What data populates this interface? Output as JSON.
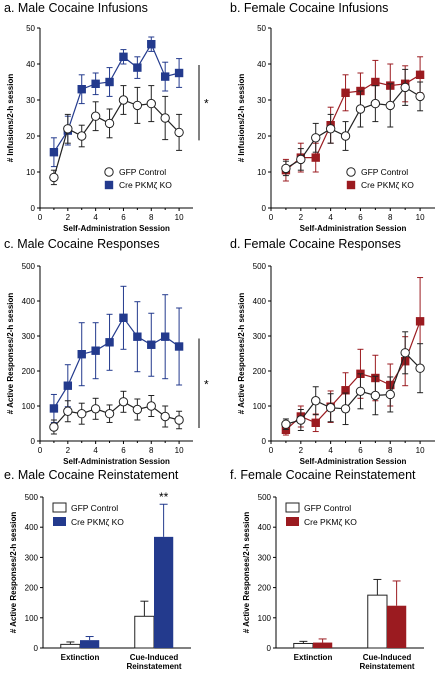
{
  "colors": {
    "blue": "#233a8d",
    "red": "#9b1b20",
    "white": "#ffffff",
    "axis": "#000000",
    "err_black": "#222222"
  },
  "panels": [
    {
      "title": "a. Male Cocaine Infusions",
      "xlabel": "Self-Administration Session",
      "ylabel": "# Infusions/2-h session",
      "significance": "*"
    },
    {
      "title": "b. Female Cocaine Infusions",
      "xlabel": "Self-Administration Session",
      "ylabel": "# Infusions/2-h session",
      "significance": ""
    },
    {
      "title": "c. Male Cocaine Responses",
      "xlabel": "Self-Administration Session",
      "ylabel": "# Active Responses/2-h session",
      "significance": "*"
    },
    {
      "title": "d. Female Cocaine Responses",
      "xlabel": "Self-Administration Session",
      "ylabel": "# Active Responses/2-h session",
      "significance": ""
    },
    {
      "title": "e. Male Cocaine Reinstatement",
      "xlabel": "",
      "ylabel": "# Active Responses/2-h session",
      "significance": "**"
    },
    {
      "title": "f. Female Cocaine Reinstatement",
      "xlabel": "",
      "ylabel": "# Active Responses/2-h session",
      "significance": ""
    }
  ],
  "chart_data": [
    {
      "type": "line",
      "title": "a. Male Cocaine Infusions",
      "xlabel": "Self-Administration Session",
      "ylabel": "# Infusions/2-h session",
      "xlim": [
        0,
        11
      ],
      "ylim": [
        0,
        50
      ],
      "xticks": [
        0,
        2,
        4,
        6,
        8,
        10
      ],
      "yticks": [
        0,
        10,
        20,
        30,
        40,
        50
      ],
      "legend_position": "lower-right",
      "significance": "*",
      "x": [
        1,
        2,
        3,
        4,
        5,
        6,
        7,
        8,
        9,
        10
      ],
      "series": [
        {
          "name": "GFP Control",
          "marker": "circle",
          "values": [
            8.5,
            22,
            20,
            25.5,
            23.5,
            30,
            28.5,
            29,
            25,
            21
          ],
          "errors": [
            2,
            4,
            3,
            4,
            4,
            4,
            5,
            5,
            6,
            5
          ]
        },
        {
          "name": "Cre PKMζ KO",
          "marker": "square",
          "values": [
            15.5,
            21.5,
            33,
            34.5,
            35,
            42,
            39,
            45.5,
            36.5,
            37.5
          ],
          "errors": [
            4,
            4,
            4,
            3,
            4,
            2,
            3,
            2,
            4,
            4
          ]
        }
      ]
    },
    {
      "type": "line",
      "title": "b. Female Cocaine Infusions",
      "xlabel": "Self-Administration Session",
      "ylabel": "# Infusions/2-h session",
      "xlim": [
        0,
        11
      ],
      "ylim": [
        0,
        50
      ],
      "xticks": [
        0,
        2,
        4,
        6,
        8,
        10
      ],
      "yticks": [
        0,
        10,
        20,
        30,
        40,
        50
      ],
      "legend_position": "lower-right",
      "significance": "",
      "x": [
        1,
        2,
        3,
        4,
        5,
        6,
        7,
        8,
        9,
        10
      ],
      "series": [
        {
          "name": "GFP Control",
          "marker": "circle",
          "values": [
            11,
            13.5,
            19.5,
            22,
            20,
            27.5,
            29,
            28.5,
            33.5,
            31
          ],
          "errors": [
            2,
            3,
            4,
            4,
            4,
            5,
            5,
            6,
            5,
            4
          ]
        },
        {
          "name": "Cre PKMζ KO",
          "marker": "square",
          "values": [
            10.5,
            14,
            14,
            23,
            32,
            32.5,
            35,
            34,
            34.5,
            37
          ],
          "errors": [
            3,
            4,
            4,
            5,
            5,
            5,
            6,
            6,
            5,
            5
          ]
        }
      ]
    },
    {
      "type": "line",
      "title": "c. Male Cocaine Responses",
      "xlabel": "Self-Administration Session",
      "ylabel": "# Active Responses/2-h session",
      "xlim": [
        0,
        11
      ],
      "ylim": [
        0,
        500
      ],
      "xticks": [
        0,
        2,
        4,
        6,
        8,
        10
      ],
      "yticks": [
        0,
        100,
        200,
        300,
        400,
        500
      ],
      "legend_position": "none",
      "significance": "*",
      "x": [
        1,
        2,
        3,
        4,
        5,
        6,
        7,
        8,
        9,
        10
      ],
      "series": [
        {
          "name": "GFP Control",
          "marker": "circle",
          "values": [
            40,
            85,
            78,
            92,
            78,
            112,
            90,
            100,
            70,
            60
          ],
          "errors": [
            20,
            30,
            30,
            30,
            25,
            30,
            30,
            30,
            30,
            25
          ]
        },
        {
          "name": "Cre PKMζ KO",
          "marker": "square",
          "values": [
            93,
            158,
            248,
            258,
            282,
            352,
            298,
            275,
            298,
            270
          ],
          "errors": [
            40,
            60,
            90,
            80,
            80,
            90,
            100,
            90,
            120,
            110
          ]
        }
      ]
    },
    {
      "type": "line",
      "title": "d. Female Cocaine Responses",
      "xlabel": "Self-Administration Session",
      "ylabel": "# Active Responses/2-h session",
      "xlim": [
        0,
        11
      ],
      "ylim": [
        0,
        500
      ],
      "xticks": [
        0,
        2,
        4,
        6,
        8,
        10
      ],
      "yticks": [
        0,
        100,
        200,
        300,
        400,
        500
      ],
      "legend_position": "none",
      "significance": "",
      "x": [
        1,
        2,
        3,
        4,
        5,
        6,
        7,
        8,
        9,
        10
      ],
      "series": [
        {
          "name": "GFP Control",
          "marker": "circle",
          "values": [
            48,
            60,
            115,
            95,
            92,
            142,
            130,
            133,
            252,
            208
          ],
          "errors": [
            15,
            30,
            40,
            40,
            45,
            50,
            55,
            50,
            60,
            70
          ]
        },
        {
          "name": "Cre PKMζ KO",
          "marker": "square",
          "values": [
            32,
            70,
            52,
            98,
            145,
            192,
            180,
            160,
            228,
            342
          ],
          "errors": [
            15,
            30,
            25,
            45,
            50,
            70,
            65,
            60,
            70,
            125
          ]
        }
      ]
    },
    {
      "type": "bar",
      "title": "e. Male Cocaine Reinstatement",
      "xlabel": "",
      "ylabel": "# Active Responses/2-h session",
      "ylim": [
        0,
        500
      ],
      "yticks": [
        0,
        100,
        200,
        300,
        400,
        500
      ],
      "categories": [
        "Extinction",
        "Cue-Induced Reinstatement"
      ],
      "legend_position": "top-left",
      "significance": "**",
      "series": [
        {
          "name": "GFP Control",
          "values": [
            12,
            105
          ],
          "errors": [
            8,
            50
          ]
        },
        {
          "name": "Cre PKMζ KO",
          "values": [
            26,
            368
          ],
          "errors": [
            12,
            108
          ]
        }
      ]
    },
    {
      "type": "bar",
      "title": "f. Female Cocaine Reinstatement",
      "xlabel": "",
      "ylabel": "# Active Responses/2-h session",
      "ylim": [
        0,
        500
      ],
      "yticks": [
        0,
        100,
        200,
        300,
        400,
        500
      ],
      "categories": [
        "Extinction",
        "Cue-Induced Reinstatement"
      ],
      "legend_position": "top-left",
      "significance": "",
      "series": [
        {
          "name": "GFP Control",
          "values": [
            15,
            175
          ],
          "errors": [
            7,
            52
          ]
        },
        {
          "name": "Cre PKMζ KO",
          "values": [
            18,
            140
          ],
          "errors": [
            12,
            82
          ]
        }
      ]
    }
  ]
}
